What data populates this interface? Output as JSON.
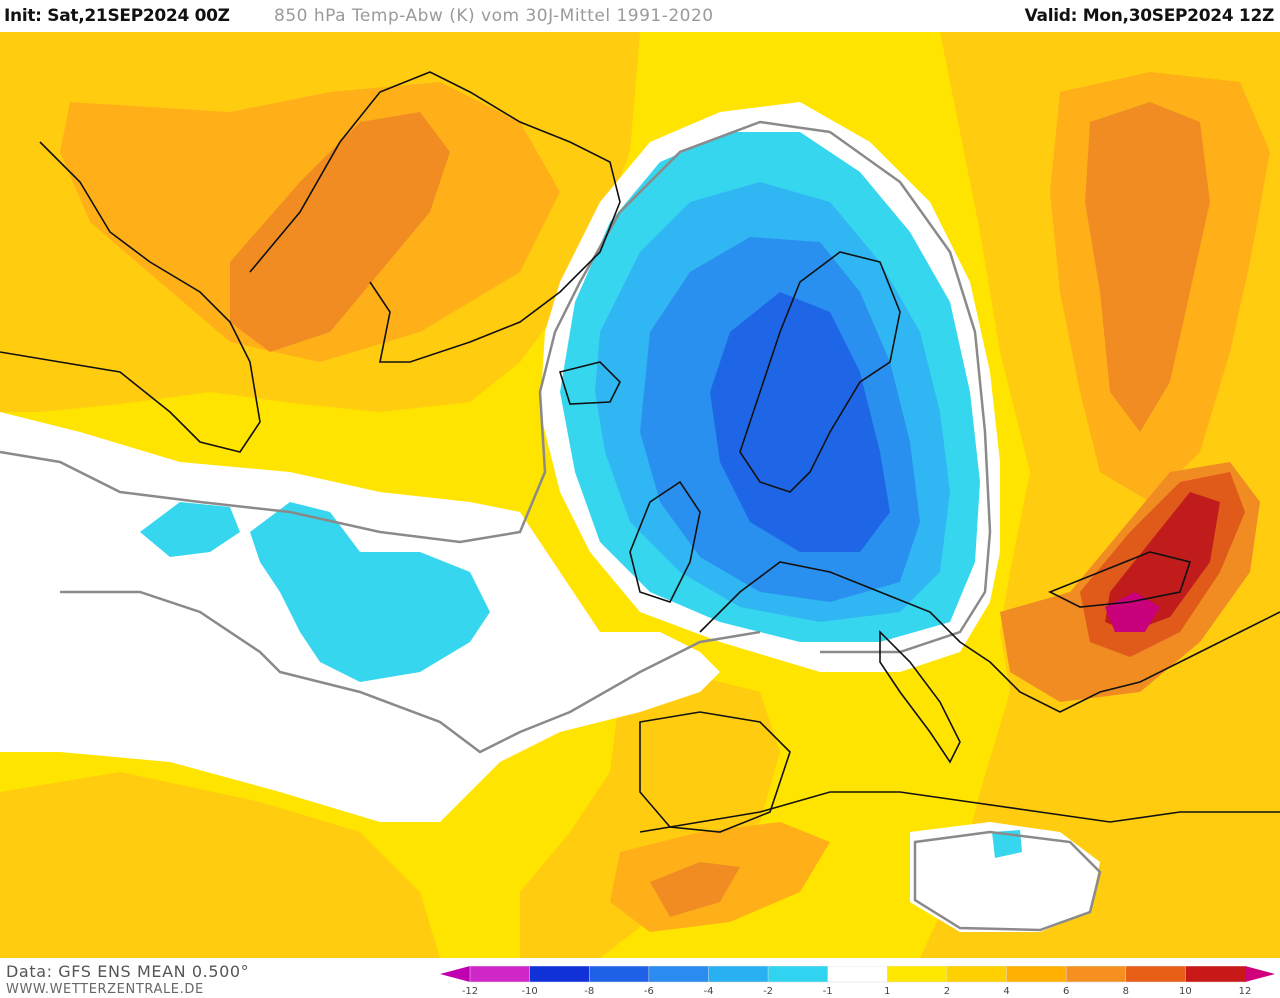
{
  "header": {
    "init": "Init: Sat,21SEP2024 00Z",
    "title": "850 hPa Temp-Abw (K) vom 30J-Mittel 1991-2020",
    "valid": "Valid: Mon,30SEP2024 12Z"
  },
  "footer": {
    "source": "Data: GFS ENS MEAN 0.500°",
    "site": "WWW.WETTERZENTRALE.DE"
  },
  "legend": {
    "labels": [
      "-12",
      "-10",
      "-8",
      "-6",
      "-4",
      "-2",
      "-1",
      "1",
      "2",
      "4",
      "6",
      "8",
      "10",
      "12"
    ],
    "colors": {
      "lt_-12": "#c000b0",
      "-12_-10": "#d028c8",
      "-10_-8": "#1030d8",
      "-8_-6": "#1e60e8",
      "-6_-4": "#2a8cf0",
      "-4_-2": "#28b0f2",
      "-2_-1": "#30d4f0",
      "-1_1": "#ffffff",
      "1_2": "#ffe800",
      "2_4": "#ffd000",
      "4_6": "#ffb000",
      "6_8": "#f59020",
      "8_10": "#e86018",
      "10_12": "#c81818",
      "gt_12": "#d0007a"
    }
  },
  "map": {
    "region": "North Atlantic and Europe",
    "palette": {
      "anomaly_minus8": "#1e66e6",
      "anomaly_minus5": "#2a90f0",
      "anomaly_minus3": "#30b6f2",
      "anomaly_minus1": "#36d6ef",
      "anomaly_zero": "#ffffff",
      "anomaly_plus1": "#ffe400",
      "anomaly_plus3": "#ffcc10",
      "anomaly_plus5": "#ffb018",
      "anomaly_plus7": "#f08c22",
      "anomaly_plus9": "#e05a1a",
      "anomaly_plus11": "#c01c1c",
      "anomaly_plus13": "#c8007c",
      "coastline": "#111111",
      "zero_isoline": "#8a8a8a"
    }
  }
}
